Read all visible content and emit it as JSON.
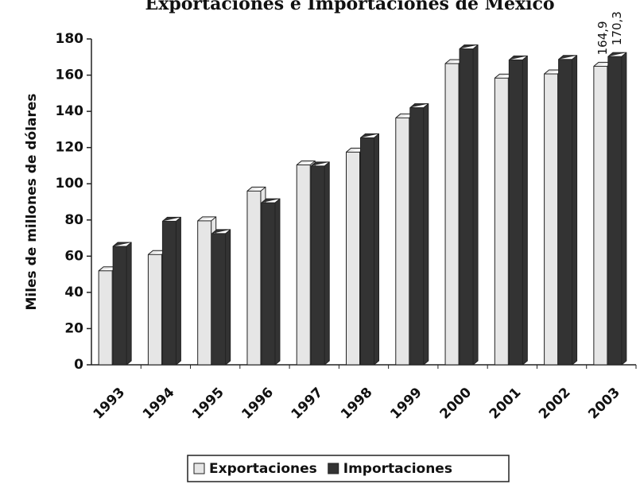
{
  "chart_data": {
    "type": "bar3d",
    "title": "Exportaciones e Importaciones de México",
    "y_label": "Miles de millones de dólares",
    "categories": [
      "1993",
      "1994",
      "1995",
      "1996",
      "1997",
      "1998",
      "1999",
      "2000",
      "2001",
      "2002",
      "2003"
    ],
    "series": [
      {
        "name": "Exportaciones",
        "color": "#e6e6e6",
        "values": [
          51.9,
          60.9,
          79.5,
          96.0,
          110.4,
          117.5,
          136.4,
          166.4,
          158.4,
          160.7,
          164.9
        ],
        "value_labels": [
          null,
          null,
          null,
          null,
          null,
          null,
          null,
          null,
          null,
          null,
          "164,9"
        ]
      },
      {
        "name": "Importaciones",
        "color": "#333333",
        "values": [
          65.4,
          79.3,
          72.5,
          89.5,
          109.8,
          125.4,
          142.0,
          174.5,
          168.4,
          168.7,
          170.3
        ],
        "value_labels": [
          null,
          null,
          null,
          null,
          null,
          null,
          null,
          null,
          null,
          null,
          "170,3"
        ]
      }
    ],
    "ylim": [
      0,
      180
    ],
    "yticks": [
      0,
      20,
      40,
      60,
      80,
      100,
      120,
      140,
      160,
      180
    ],
    "grid": false,
    "legend": "bottom"
  }
}
